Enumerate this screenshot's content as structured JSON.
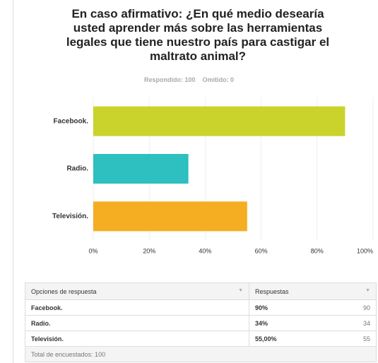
{
  "chart_data": {
    "type": "hbar",
    "title": "En caso afirmativo: ¿En qué medio desearía usted aprender más sobre las herramientas legales que tiene nuestro país para castigar el maltrato animal?",
    "subtitle": [
      "Respondido: 100",
      "Omitido: 0"
    ],
    "categories": [
      "Facebook.",
      "Radio.",
      "Televisión."
    ],
    "values": [
      90,
      34,
      55
    ],
    "colors": [
      "#c9d32c",
      "#2ebfc0",
      "#f5ae22"
    ],
    "xlim": [
      0,
      100
    ],
    "xticks": [
      {
        "value": 0,
        "label": "0%"
      },
      {
        "value": 20,
        "label": "20%"
      },
      {
        "value": 40,
        "label": "40%"
      },
      {
        "value": 60,
        "label": "60%"
      },
      {
        "value": 80,
        "label": "80%"
      },
      {
        "value": 100,
        "label": "100%"
      }
    ],
    "grid": true
  },
  "table": {
    "headers": [
      "Opciones de respuesta",
      "Respuestas"
    ],
    "rows": [
      [
        "Facebook.",
        "90%",
        90
      ],
      [
        "Radio.",
        "34%",
        34
      ],
      [
        "Televisión.",
        "55,00%",
        55
      ]
    ],
    "footer": "Total de encuestados: 100"
  }
}
